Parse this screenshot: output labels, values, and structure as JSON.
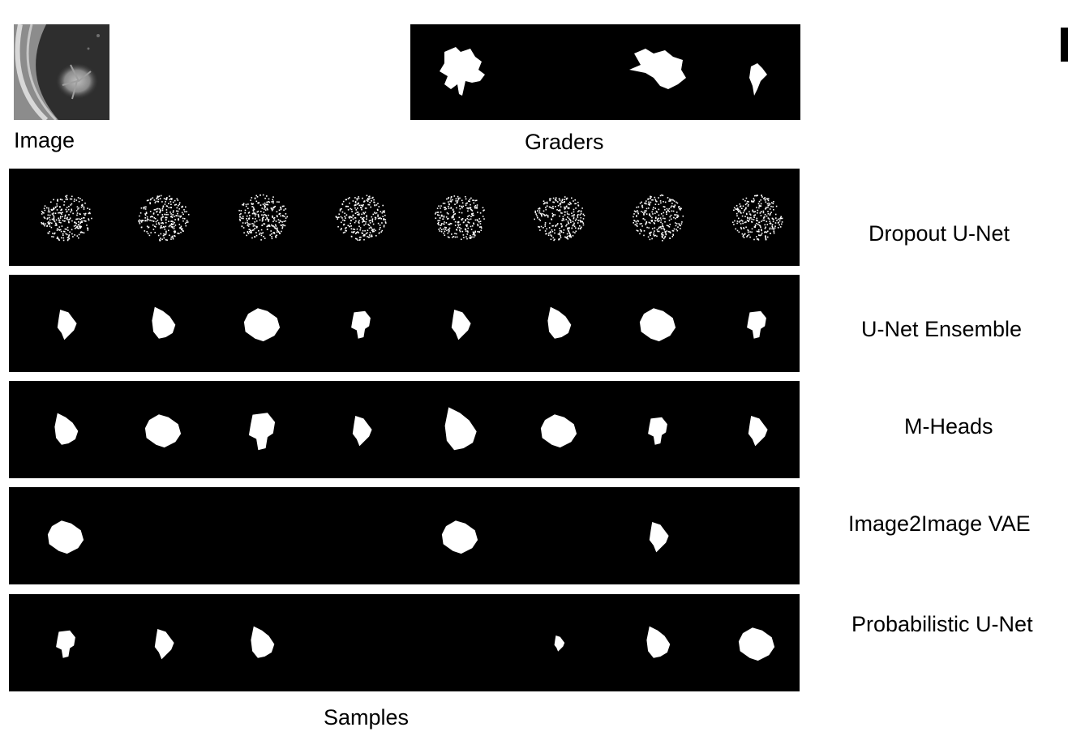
{
  "figure": {
    "image_label": "Image",
    "graders_label": "Graders",
    "samples_label": "Samples",
    "colors": {
      "background": "#ffffff",
      "strip": "#000000",
      "mask": "#ffffff",
      "ct_tissue": "#6b6b6b"
    },
    "rows": [
      {
        "id": "dropout",
        "label": "Dropout  U-Net",
        "style": "noisy",
        "masks": [
          1,
          1,
          1,
          1,
          1,
          1,
          1,
          1
        ]
      },
      {
        "id": "ensemble",
        "label": "U-Net Ensemble",
        "style": "solid",
        "masks": [
          1,
          1,
          1,
          1,
          1,
          1,
          1,
          1
        ]
      },
      {
        "id": "mheads",
        "label": "M-Heads",
        "style": "solid",
        "masks": [
          1,
          1,
          1,
          1,
          1,
          1,
          1,
          1
        ]
      },
      {
        "id": "vae",
        "label": "Image2Image VAE",
        "style": "solid",
        "masks": [
          1,
          0,
          0,
          0,
          1,
          0,
          1,
          0
        ]
      },
      {
        "id": "prob",
        "label": "Probabilistic U-Net",
        "style": "solid",
        "masks": [
          1,
          1,
          1,
          0,
          0,
          1,
          1,
          1
        ]
      }
    ]
  }
}
